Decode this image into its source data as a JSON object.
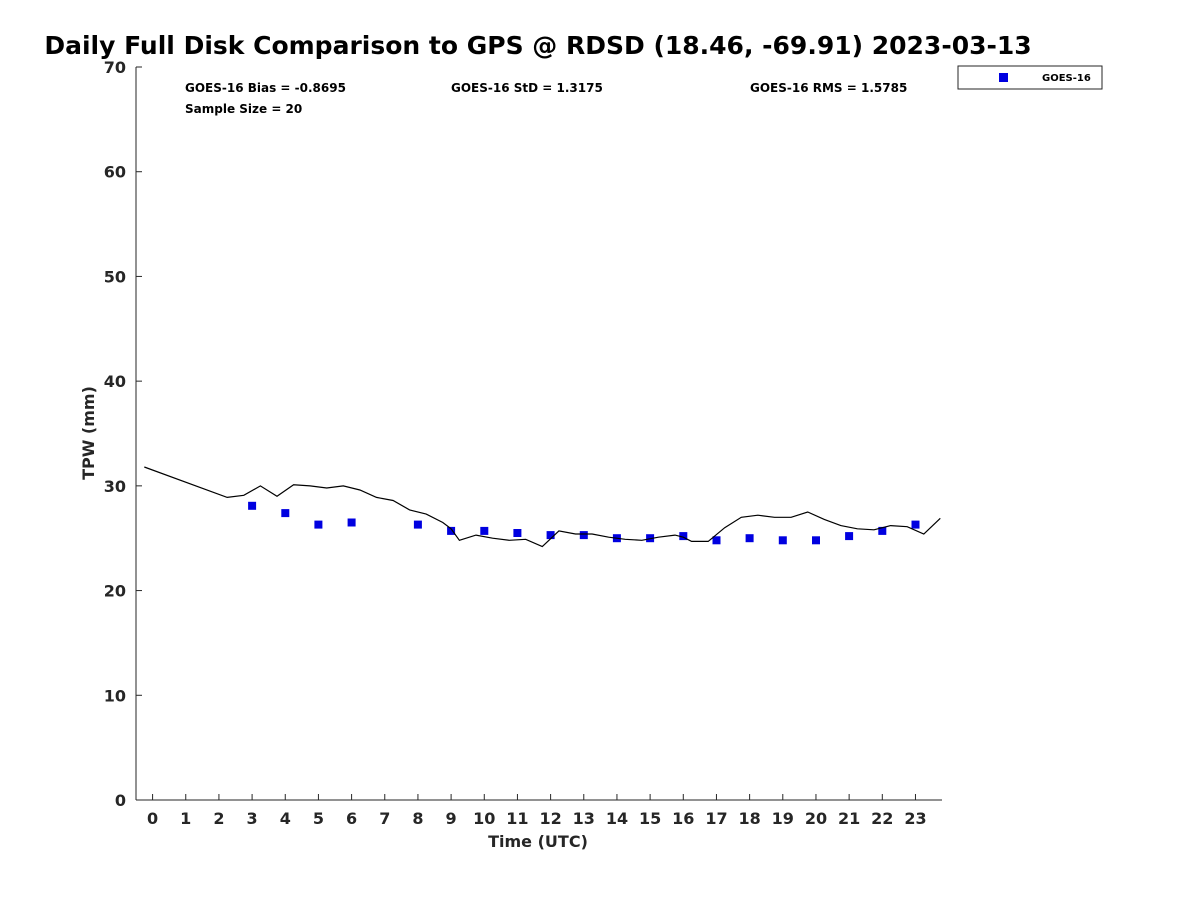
{
  "chart_data": {
    "type": "scatter",
    "title": "Daily Full Disk Comparison to GPS @ RDSD (18.46, -69.91) 2023-03-13",
    "xlabel": "Time (UTC)",
    "ylabel": "TPW (mm)",
    "xlim": [
      -0.5,
      23.8
    ],
    "ylim": [
      0,
      70
    ],
    "xticks": [
      0,
      1,
      2,
      3,
      4,
      5,
      6,
      7,
      8,
      9,
      10,
      11,
      12,
      13,
      14,
      15,
      16,
      17,
      18,
      19,
      20,
      21,
      22,
      23
    ],
    "yticks": [
      0,
      10,
      20,
      30,
      40,
      50,
      60,
      70
    ],
    "grid": false,
    "legend_position": "top-right",
    "stats": {
      "bias": "GOES-16 Bias = -0.8695",
      "std": "GOES-16 StD = 1.3175",
      "rms": "GOES-16 RMS = 1.5785",
      "sample": "Sample Size = 20"
    },
    "series": [
      {
        "name": "GOES-16",
        "kind": "markers",
        "color": "#0000e0",
        "x": [
          3,
          4,
          5,
          6,
          8,
          9,
          10,
          11,
          12,
          13,
          14,
          15,
          16,
          17,
          18,
          19,
          20,
          21,
          22,
          23
        ],
        "y": [
          28.1,
          27.4,
          26.3,
          26.5,
          26.3,
          25.7,
          25.7,
          25.5,
          25.3,
          25.3,
          25.0,
          25.0,
          25.2,
          24.8,
          25.0,
          24.8,
          24.8,
          25.2,
          25.7,
          26.3
        ]
      },
      {
        "kind": "line",
        "color": "#000000",
        "x": [
          -0.25,
          2.25,
          2.75,
          3.25,
          3.75,
          4.25,
          4.75,
          5.25,
          5.75,
          6.25,
          6.75,
          7.25,
          7.75,
          8.25,
          8.75,
          9.0,
          9.25,
          9.75,
          10.25,
          10.75,
          11.25,
          11.75,
          12.25,
          12.75,
          13.25,
          13.75,
          14.25,
          14.75,
          15.25,
          15.75,
          16.0,
          16.25,
          16.75,
          17.25,
          17.75,
          18.25,
          18.75,
          19.25,
          19.75,
          20.25,
          20.75,
          21.25,
          21.75,
          22.25,
          22.75,
          23.25,
          23.75
        ],
        "y": [
          31.8,
          28.9,
          29.1,
          30.0,
          29.0,
          30.1,
          30.0,
          29.8,
          30.0,
          29.6,
          28.9,
          28.6,
          27.7,
          27.3,
          26.5,
          25.9,
          24.8,
          25.3,
          25.0,
          24.8,
          24.9,
          24.2,
          25.7,
          25.4,
          25.4,
          25.1,
          24.9,
          24.8,
          25.1,
          25.3,
          25.1,
          24.7,
          24.7,
          26.0,
          27.0,
          27.2,
          27.0,
          27.0,
          27.5,
          26.8,
          26.2,
          25.9,
          25.8,
          26.2,
          26.1,
          25.4,
          26.9
        ]
      }
    ]
  }
}
